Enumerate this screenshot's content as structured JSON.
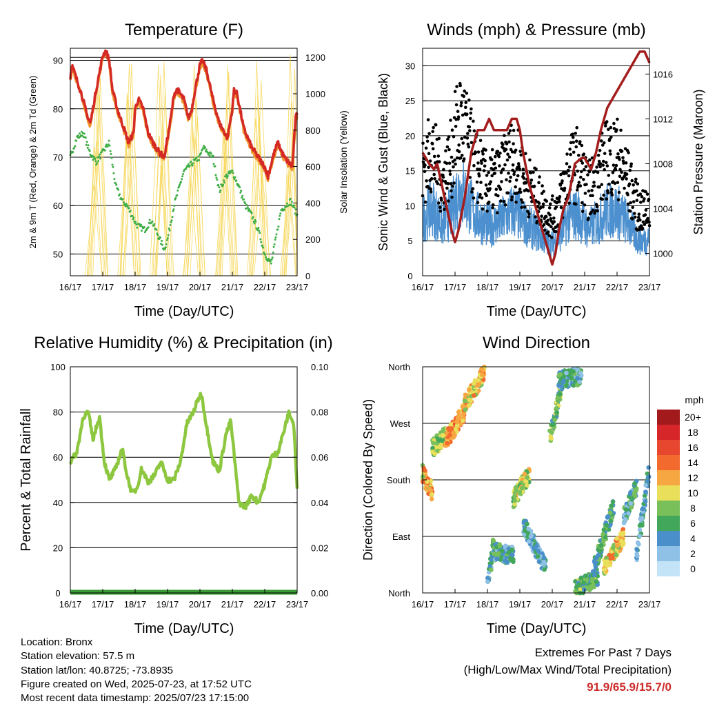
{
  "info": {
    "location": "Location: Bronx",
    "elevation": "Station elevation: 57.5 m",
    "latlon": "Station lat/lon: 40.8725; -73.8935",
    "created": "Figure created on Wed, 2025-07-23, at 17:52 UTC",
    "timestamp": "Most recent data timestamp: 2025/07/23 17:15:00"
  },
  "extremes": {
    "line1": "Extremes For Past 7 Days",
    "line2": "(High/Low/Max Wind/Total Precipitation)",
    "values": "91.9/65.9/15.7/0",
    "color": "#cc2a28"
  },
  "colorbar": {
    "unit": "mph",
    "labels": [
      "20+",
      "18",
      "16",
      "14",
      "12",
      "10",
      "8",
      "6",
      "4",
      "2",
      "0"
    ],
    "colors": [
      "#a31a1c",
      "#d7262a",
      "#e8472f",
      "#f26a2e",
      "#f7a742",
      "#e9df5a",
      "#79c05b",
      "#43a75b",
      "#4a8fc9",
      "#8fc0e6",
      "#c3e4f6"
    ]
  },
  "chart_data": [
    {
      "type": "line",
      "title": "Temperature (F)",
      "xlabel": "Time (Day/UTC)",
      "ylabel": "2m & 9m T (Red, Orange) & 2m Td (Green)",
      "y2label": "Solar Insolation (Yellow)",
      "x_ticks": [
        "16/17",
        "17/17",
        "18/17",
        "19/17",
        "20/17",
        "21/17",
        "22/17",
        "23/17"
      ],
      "xlim": [
        0,
        7
      ],
      "ylim": [
        45.5,
        92.5
      ],
      "y_ticks": [
        50,
        60,
        70,
        80,
        90
      ],
      "y2lim": [
        0,
        1250
      ],
      "y2_ticks": [
        0,
        200,
        400,
        600,
        800,
        1000,
        1200
      ],
      "grid": "horizontal",
      "series": [
        {
          "color": "#d52a24",
          "x": [
            0,
            0.05,
            0.2,
            0.35,
            0.5,
            0.62,
            0.8,
            1.0,
            1.1,
            1.2,
            1.3,
            1.45,
            1.6,
            1.8,
            1.95,
            2.0,
            2.1,
            2.25,
            2.4,
            2.55,
            2.75,
            2.9,
            3.1,
            3.2,
            3.3,
            3.5,
            3.65,
            3.75,
            3.85,
            4.0,
            4.08,
            4.2,
            4.4,
            4.6,
            4.85,
            5.0,
            5.05,
            5.15,
            5.35,
            5.6,
            5.8,
            6.0,
            6.1,
            6.25,
            6.4,
            6.6,
            6.85,
            6.95,
            7.0
          ],
          "values": [
            86.5,
            89,
            86,
            83,
            79,
            77,
            84,
            91,
            92,
            90,
            84,
            80,
            77,
            73,
            75,
            80,
            82,
            80,
            75,
            73,
            71,
            70,
            78,
            83,
            84,
            82,
            78,
            80,
            84,
            89,
            90,
            88,
            82,
            77,
            74,
            80,
            84,
            83,
            76,
            72,
            70,
            68,
            66,
            70,
            73,
            70,
            68,
            78,
            79
          ]
        },
        {
          "color": "#f0962e",
          "x": [
            0,
            0.05,
            0.2,
            0.35,
            0.5,
            0.62,
            0.8,
            1.0,
            1.1,
            1.2,
            1.3,
            1.45,
            1.6,
            1.8,
            1.95,
            2.0,
            2.1,
            2.25,
            2.4,
            2.55,
            2.75,
            2.9,
            3.1,
            3.2,
            3.3,
            3.5,
            3.65,
            3.75,
            3.85,
            4.0,
            4.08,
            4.2,
            4.4,
            4.6,
            4.85,
            5.0,
            5.05,
            5.15,
            5.35,
            5.6,
            5.8,
            6.0,
            6.1,
            6.25,
            6.4,
            6.6,
            6.85,
            6.95,
            7.0
          ],
          "values": [
            86,
            88.5,
            85.5,
            82.5,
            78.5,
            76.5,
            83.5,
            90.5,
            91.5,
            89.5,
            83.5,
            79.5,
            76.5,
            72.5,
            74.5,
            79.5,
            81.5,
            79.5,
            74.5,
            72.5,
            70.5,
            69.5,
            77.5,
            82.5,
            83.5,
            81.5,
            77.5,
            79.5,
            83.5,
            88.5,
            89.5,
            87.5,
            81.5,
            76.5,
            73.5,
            79.5,
            83.5,
            82.5,
            75.5,
            71.5,
            69.5,
            67.5,
            65.5,
            69.5,
            72.5,
            69.5,
            67.5,
            77.5,
            78.5
          ]
        },
        {
          "color": "#3fae46",
          "x": [
            0,
            0.2,
            0.4,
            0.5,
            0.6,
            0.8,
            1.0,
            1.2,
            1.4,
            1.6,
            1.75,
            1.9,
            2.05,
            2.3,
            2.5,
            2.7,
            2.9,
            3.0,
            3.2,
            3.5,
            3.8,
            4.0,
            4.1,
            4.4,
            4.6,
            4.8,
            5.0,
            5.2,
            5.4,
            5.6,
            5.8,
            6.0,
            6.2,
            6.5,
            6.8,
            7.0
          ],
          "values": [
            70,
            74,
            75,
            73,
            71,
            69,
            71,
            73,
            64,
            61,
            60,
            58,
            56,
            55,
            57,
            54,
            51,
            53,
            60,
            67,
            69,
            70,
            72,
            70,
            63,
            66,
            67,
            64,
            60,
            58,
            55,
            50,
            48,
            59,
            61,
            58
          ]
        }
      ]
    },
    {
      "type": "scatter",
      "title": "Winds (mph) & Pressure (mb)",
      "xlabel": "Time (Day/UTC)",
      "ylabel": "Sonic Wind & Gust (Blue, Black)",
      "y2label": "Station Pressure (Maroon)",
      "x_ticks": [
        "16/17",
        "17/17",
        "18/17",
        "19/17",
        "20/17",
        "21/17",
        "22/17",
        "23/17"
      ],
      "xlim": [
        0,
        7
      ],
      "ylim": [
        0,
        32.5
      ],
      "y_ticks": [
        0,
        5,
        10,
        15,
        20,
        25,
        30
      ],
      "y2lim": [
        998,
        1018.3
      ],
      "y2_ticks": [
        1000,
        1004,
        1008,
        1012,
        1016
      ],
      "grid": "horizontal",
      "series": [
        {
          "name": "Pressure",
          "color": "#a31d1d",
          "x": [
            0,
            0.2,
            0.35,
            0.45,
            0.6,
            0.75,
            0.9,
            1.0,
            1.1,
            1.3,
            1.5,
            1.7,
            1.9,
            2.05,
            2.2,
            2.4,
            2.6,
            2.75,
            2.9,
            3.0,
            3.1,
            3.3,
            3.5,
            3.7,
            3.85,
            4.0,
            4.1,
            4.2,
            4.35,
            4.5,
            4.7,
            4.9,
            5.0,
            5.1,
            5.2,
            5.35,
            5.5,
            5.7,
            5.9,
            6.1,
            6.3,
            6.5,
            6.7,
            6.85,
            7.0
          ],
          "values": [
            1009,
            1008,
            1007.5,
            1008,
            1006,
            1004,
            1002,
            1001,
            1002,
            1005,
            1009,
            1011,
            1011,
            1012,
            1011,
            1011,
            1011,
            1012,
            1012,
            1011,
            1009,
            1006,
            1004,
            1002,
            1000.5,
            999,
            1000,
            1002,
            1004,
            1005,
            1008,
            1008.5,
            1008.5,
            1008,
            1007.5,
            1009,
            1011,
            1013,
            1014,
            1015,
            1016,
            1017,
            1018,
            1018,
            1017
          ]
        }
      ]
    },
    {
      "type": "line",
      "title": "Relative Humidity (%) & Precipitation (in)",
      "xlabel": "Time (Day/UTC)",
      "ylabel": "Percent & Total Rainfall",
      "x_ticks": [
        "16/17",
        "17/17",
        "18/17",
        "19/17",
        "20/17",
        "21/17",
        "22/17",
        "23/17"
      ],
      "xlim": [
        0,
        7
      ],
      "ylim": [
        0,
        100
      ],
      "y_ticks": [
        0,
        20,
        40,
        60,
        80,
        100
      ],
      "y2lim": [
        0,
        0.1
      ],
      "y2_ticks": [
        "0.00",
        "0.02",
        "0.04",
        "0.06",
        "0.08",
        "0.10"
      ],
      "grid": "horizontal",
      "series": [
        {
          "name": "Relative Humidity",
          "color": "#8dc73f",
          "x": [
            0,
            0.2,
            0.4,
            0.55,
            0.7,
            0.9,
            1.05,
            1.2,
            1.4,
            1.6,
            1.75,
            1.9,
            2.05,
            2.2,
            2.4,
            2.6,
            2.8,
            3.0,
            3.2,
            3.4,
            3.6,
            3.8,
            3.95,
            4.05,
            4.2,
            4.4,
            4.6,
            4.8,
            4.95,
            5.05,
            5.2,
            5.4,
            5.6,
            5.8,
            6.0,
            6.2,
            6.4,
            6.6,
            6.75,
            6.9,
            7.0
          ],
          "values": [
            58,
            62,
            78,
            80,
            68,
            78,
            58,
            50,
            55,
            64,
            52,
            44,
            46,
            55,
            49,
            52,
            58,
            50,
            50,
            58,
            75,
            80,
            86,
            88,
            74,
            58,
            54,
            70,
            76,
            62,
            40,
            38,
            43,
            40,
            48,
            60,
            62,
            72,
            80,
            74,
            45
          ]
        },
        {
          "name": "Precipitation",
          "color": "#3a9a35",
          "x": [
            0,
            7
          ],
          "values": [
            0,
            0
          ]
        }
      ]
    },
    {
      "type": "scatter",
      "title": "Wind Direction",
      "xlabel": "Time (Day/UTC)",
      "ylabel": "Direction (Colored By Speed)",
      "x_ticks": [
        "16/17",
        "17/17",
        "18/17",
        "19/17",
        "20/17",
        "21/17",
        "22/17",
        "23/17"
      ],
      "xlim": [
        0,
        7
      ],
      "ylim": [
        0,
        360
      ],
      "y_tick_labels": [
        "North",
        "East",
        "South",
        "West",
        "North"
      ],
      "grid": "horizontal"
    }
  ]
}
